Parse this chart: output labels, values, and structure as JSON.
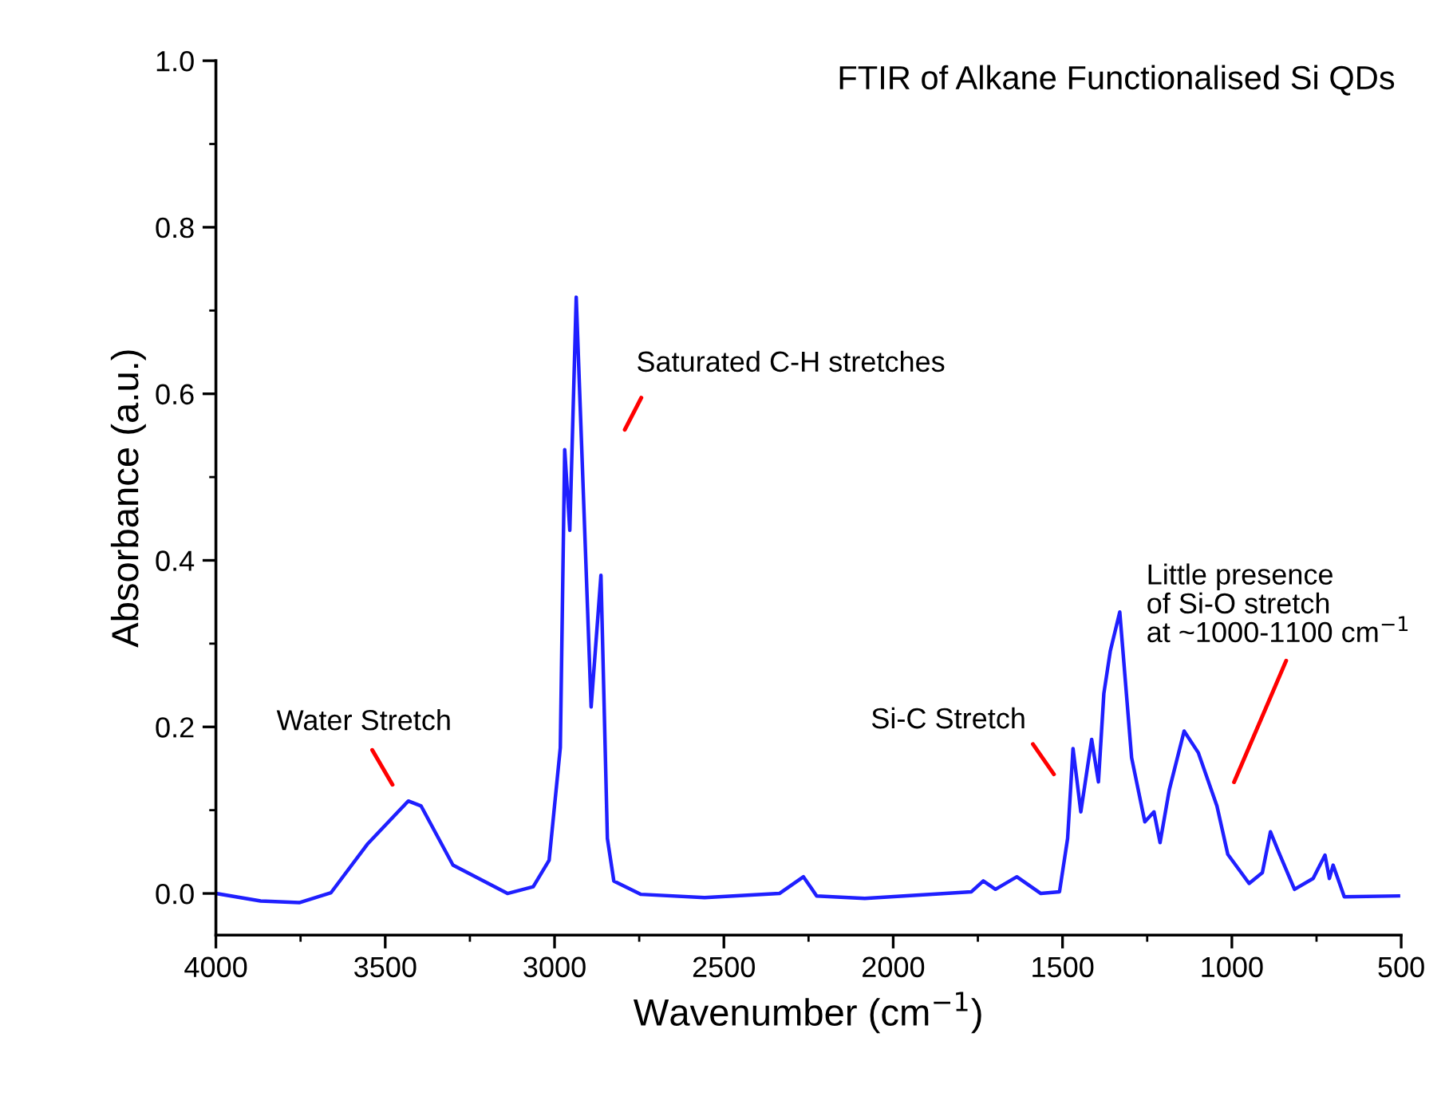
{
  "chart_data": {
    "type": "line",
    "title": "FTIR of Alkane Functionalised Si QDs",
    "xlabel": "Wavenumber (cm$^{−1}$)",
    "ylabel": "Absorbance (a.u.)",
    "xlim": [
      4000,
      500
    ],
    "xticks": [
      4000,
      3500,
      3000,
      2500,
      2000,
      1500,
      1000,
      500
    ],
    "ylim": [
      -0.05,
      1.0
    ],
    "yticks": [
      {
        "value": 0,
        "label": "0.0"
      },
      0.2,
      0.4,
      0.6,
      0.8,
      {
        "value": 1,
        "label": "1.0"
      }
    ],
    "grid": false,
    "legend": false,
    "series": [
      {
        "color": "#1f1fff",
        "x": [
          4000,
          3868,
          3754,
          3660,
          3551,
          3432,
          3394,
          3300,
          3139,
          3063,
          3016,
          2983,
          2970,
          2955,
          2936,
          2892,
          2876,
          2863,
          2844,
          2825,
          2746,
          2557,
          2336,
          2265,
          2226,
          2084,
          1769,
          1734,
          1698,
          1635,
          1564,
          1509,
          1485,
          1469,
          1446,
          1414,
          1394,
          1378,
          1359,
          1331,
          1296,
          1257,
          1230,
          1212,
          1185,
          1141,
          1099,
          1044,
          1012,
          949,
          910,
          886,
          862,
          815,
          760,
          725,
          712,
          701,
          668,
          508
        ],
        "values": [
          0.0,
          -0.009,
          -0.011,
          0.001,
          0.06,
          0.111,
          0.105,
          0.034,
          0.0,
          0.008,
          0.04,
          0.175,
          0.533,
          0.436,
          0.716,
          0.224,
          0.311,
          0.382,
          0.066,
          0.015,
          -0.001,
          -0.005,
          0.0,
          0.02,
          -0.003,
          -0.006,
          0.002,
          0.015,
          0.005,
          0.02,
          0.0,
          0.002,
          0.066,
          0.174,
          0.098,
          0.185,
          0.134,
          0.24,
          0.291,
          0.338,
          0.163,
          0.086,
          0.098,
          0.061,
          0.124,
          0.195,
          0.169,
          0.105,
          0.047,
          0.012,
          0.025,
          0.074,
          0.05,
          0.005,
          0.018,
          0.046,
          0.018,
          0.034,
          -0.004,
          -0.003
        ]
      }
    ],
    "annotations": [
      "Water Stretch",
      "Saturated C-H stretches",
      "Si-C Stretch",
      "Little presence\nof Si-O stretch\nat ~1000-1100 cm$^{−1}$"
    ]
  }
}
